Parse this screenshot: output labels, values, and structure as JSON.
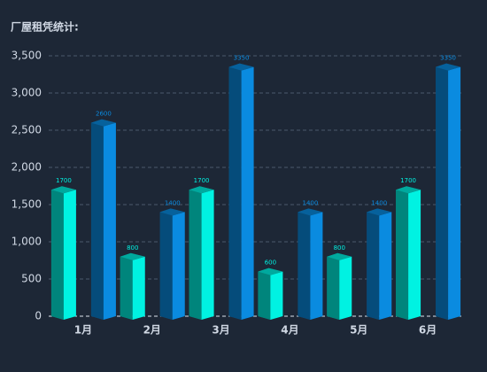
{
  "chart_data": {
    "type": "bar3d",
    "title": "厂屋租凭统计:",
    "categories": [
      "1月",
      "2月",
      "3月",
      "4月",
      "5月",
      "6月"
    ],
    "series": [
      {
        "color": "#00f2e2",
        "values": [
          1700,
          800,
          1700,
          600,
          800,
          1700
        ]
      },
      {
        "color": "#0a8be0",
        "values": [
          2600,
          1400,
          3350,
          1400,
          1400,
          3350
        ]
      }
    ],
    "ylim": [
      0,
      3500
    ],
    "yticks": [
      0,
      500,
      {
        "value": 1000,
        "label": "1,000"
      },
      {
        "value": 1500,
        "label": "1,500"
      },
      {
        "value": 2000,
        "label": "2,000"
      },
      {
        "value": 2500,
        "label": "2,500"
      },
      {
        "value": 3000,
        "label": "3,000"
      },
      {
        "value": 3500,
        "label": "3,500"
      }
    ],
    "grid": true
  }
}
